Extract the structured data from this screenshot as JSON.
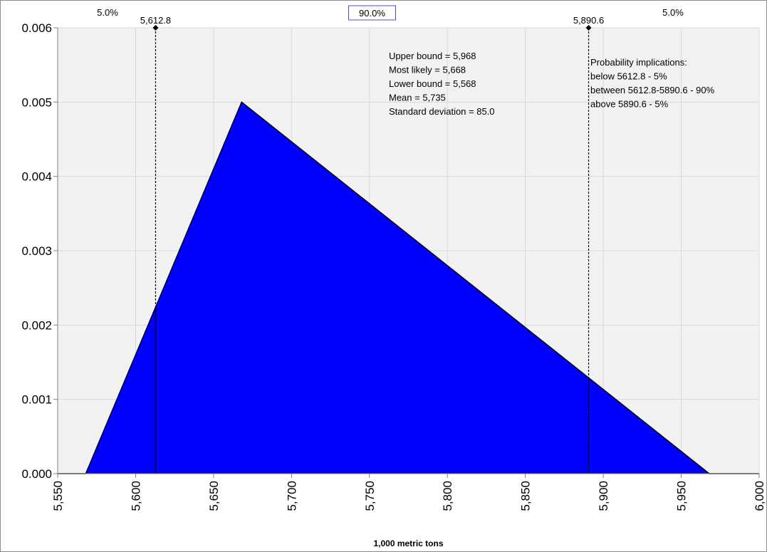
{
  "chart_data": {
    "type": "area",
    "xlabel": "1,000 metric tons",
    "ylabel": "",
    "xlim": [
      5550,
      6000
    ],
    "ylim": [
      0,
      0.006
    ],
    "x_ticks": [
      "5,550",
      "5,600",
      "5,650",
      "5,700",
      "5,750",
      "5,800",
      "5,850",
      "5,900",
      "5,950",
      "6,000"
    ],
    "y_ticks": [
      "0.000",
      "0.001",
      "0.002",
      "0.003",
      "0.004",
      "0.005",
      "0.006"
    ],
    "grid": true,
    "colors": {
      "fill": "#0000ff",
      "edge": "#000000",
      "plot_background": "#f2f2f2",
      "grid": "#d9d9d9",
      "mid_label_border": "#4a4af0"
    },
    "distribution": {
      "x": [
        5550,
        5568,
        5668,
        5968,
        6000
      ],
      "y": [
        0,
        0,
        0.005,
        0,
        0
      ]
    },
    "markers": [
      {
        "x": 5612.8,
        "label": "5,612.8"
      },
      {
        "x": 5890.6,
        "label": "5,890.6"
      }
    ],
    "region_labels": {
      "left": "5.0%",
      "middle": "90.0%",
      "right": "5.0%"
    },
    "stats_lines": [
      "Upper bound = 5,968",
      "Most likely = 5,668",
      "Lower bound = 5,568",
      "Mean = 5,735",
      "Standard deviation = 85.0"
    ],
    "probability_lines": [
      "Probability implications:",
      " below 5612.8 - 5%",
      " between 5612.8-5890.6 - 90%",
      " above 5890.6 - 5%"
    ]
  }
}
